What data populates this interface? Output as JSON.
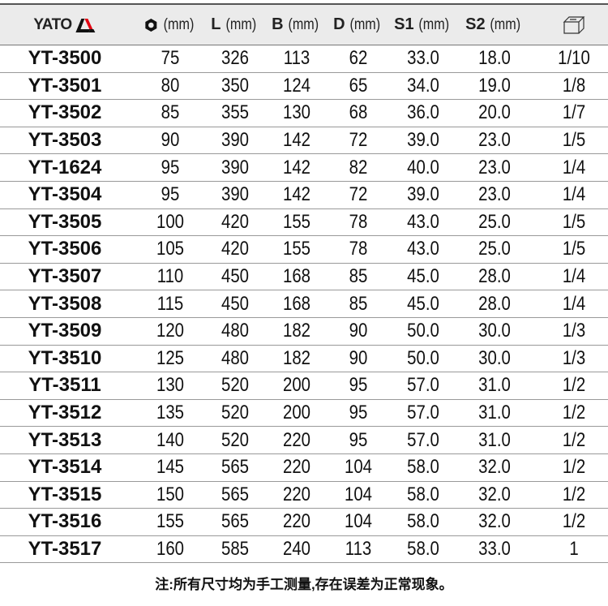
{
  "brand": "YATO",
  "colors": {
    "header_bg": "#ebebeb",
    "logo_red": "#e30613"
  },
  "headers": [
    {
      "icon": "hex-nut-icon",
      "label": "",
      "unit": "(mm)"
    },
    {
      "label": "L",
      "unit": "(mm)"
    },
    {
      "label": "B",
      "unit": "(mm)"
    },
    {
      "label": "D",
      "unit": "(mm)"
    },
    {
      "label": "S1",
      "unit": "(mm)"
    },
    {
      "label": "S2",
      "unit": "(mm)"
    },
    {
      "icon": "box-icon"
    }
  ],
  "rows": [
    [
      "YT-3500",
      "75",
      "326",
      "113",
      "62",
      "33.0",
      "18.0",
      "1/10"
    ],
    [
      "YT-3501",
      "80",
      "350",
      "124",
      "65",
      "34.0",
      "19.0",
      "1/8"
    ],
    [
      "YT-3502",
      "85",
      "355",
      "130",
      "68",
      "36.0",
      "20.0",
      "1/7"
    ],
    [
      "YT-3503",
      "90",
      "390",
      "142",
      "72",
      "39.0",
      "23.0",
      "1/5"
    ],
    [
      "YT-1624",
      "95",
      "390",
      "142",
      "82",
      "40.0",
      "23.0",
      "1/4"
    ],
    [
      "YT-3504",
      "95",
      "390",
      "142",
      "72",
      "39.0",
      "23.0",
      "1/4"
    ],
    [
      "YT-3505",
      "100",
      "420",
      "155",
      "78",
      "43.0",
      "25.0",
      "1/5"
    ],
    [
      "YT-3506",
      "105",
      "420",
      "155",
      "78",
      "43.0",
      "25.0",
      "1/5"
    ],
    [
      "YT-3507",
      "110",
      "450",
      "168",
      "85",
      "45.0",
      "28.0",
      "1/4"
    ],
    [
      "YT-3508",
      "115",
      "450",
      "168",
      "85",
      "45.0",
      "28.0",
      "1/4"
    ],
    [
      "YT-3509",
      "120",
      "480",
      "182",
      "90",
      "50.0",
      "30.0",
      "1/3"
    ],
    [
      "YT-3510",
      "125",
      "480",
      "182",
      "90",
      "50.0",
      "30.0",
      "1/3"
    ],
    [
      "YT-3511",
      "130",
      "520",
      "200",
      "95",
      "57.0",
      "31.0",
      "1/2"
    ],
    [
      "YT-3512",
      "135",
      "520",
      "200",
      "95",
      "57.0",
      "31.0",
      "1/2"
    ],
    [
      "YT-3513",
      "140",
      "520",
      "220",
      "95",
      "57.0",
      "31.0",
      "1/2"
    ],
    [
      "YT-3514",
      "145",
      "565",
      "220",
      "104",
      "58.0",
      "32.0",
      "1/2"
    ],
    [
      "YT-3515",
      "150",
      "565",
      "220",
      "104",
      "58.0",
      "32.0",
      "1/2"
    ],
    [
      "YT-3516",
      "155",
      "565",
      "220",
      "104",
      "58.0",
      "32.0",
      "1/2"
    ],
    [
      "YT-3517",
      "160",
      "585",
      "240",
      "113",
      "58.0",
      "33.0",
      "1"
    ]
  ],
  "note": "注:所有尺寸均为手工测量,存在误差为正常现象。"
}
